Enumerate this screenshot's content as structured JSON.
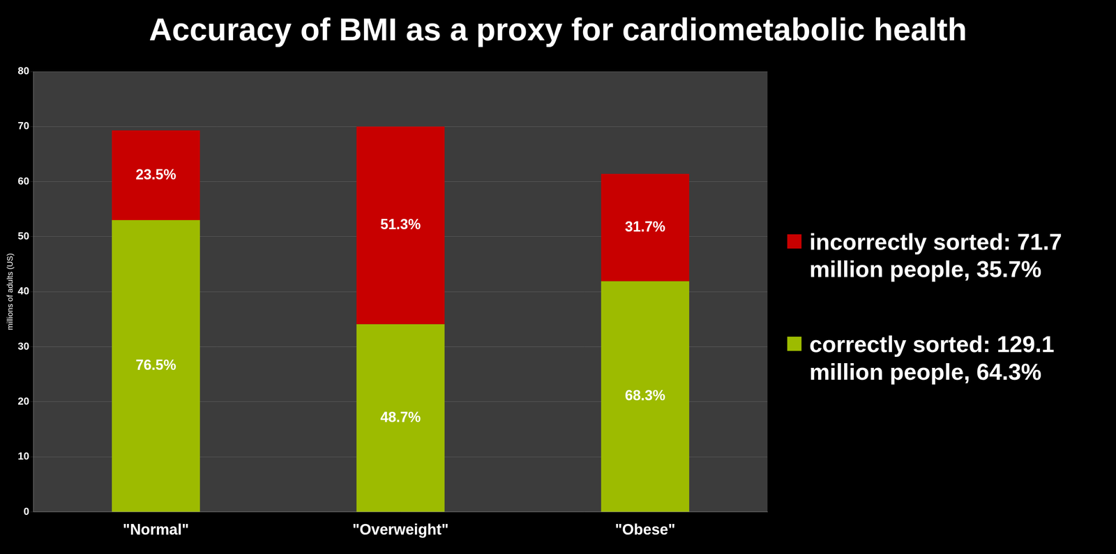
{
  "chart_data": {
    "type": "bar",
    "title": "Accuracy of BMI as a proxy for cardiometabolic health",
    "y_label": "millions of adults (US)",
    "categories": [
      "\"Normal\"",
      "\"Overweight\"",
      "\"Obese\""
    ],
    "series": [
      {
        "name": "correctly sorted: 129.1 million people, 64.3%",
        "color": "#9dbb00",
        "values": [
          53.0,
          34.1,
          41.9
        ],
        "share_labels": [
          "76.5%",
          "48.7%",
          "68.3%"
        ]
      },
      {
        "name": "incorrectly sorted: 71.7 million people, 35.7%",
        "color": "#c80000",
        "values": [
          16.3,
          35.9,
          19.5
        ],
        "share_labels": [
          "23.5%",
          "51.3%",
          "31.7%"
        ]
      }
    ],
    "stacked": true,
    "ylim": [
      0,
      80
    ],
    "yticks": [
      0,
      10,
      20,
      30,
      40,
      50,
      60,
      70,
      80
    ],
    "grid": true,
    "legend": "right"
  }
}
